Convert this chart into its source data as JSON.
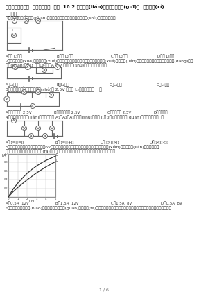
{
  "title": "人教版九年級物理  第十六章電壓  電阻  16.2 串、并聯(lián)電路中電壓的規(guī)律  課后練習(xí)",
  "section1": "一、選擇題",
  "q1": "1．如圖所示，閉合開關(guān)后，只有一盞燈光，用電流表的示數(shù)相同，則可能是",
  "q1_options": [
    "A．燈 L₁斷路",
    "B．燈 L₂斷路",
    "C．燈 L₂斷路",
    "D．燈 L₃斷路"
  ],
  "q2_line1": "2．我們做電學(xué)實驗時同學(xué)全都在本模擬電路的圖，如下圖是一位同學(xué)研究串聯(lián)電路電流、電壓各點的電路圖，當(dāng)閉合",
  "q2_line2": "開關(guān)時，L₁ 亮、L₂不亮，A 和 V 均有示數(shù)，故障的原因可能是",
  "q2_options": [
    "A．L₁斷路",
    "B．L₂斷路",
    "C．L₁燒掉",
    "D．L₂燒掉"
  ],
  "q3": "3．如圖所示，若電壓表的示數(shù)為 2.5V 時，燈 L₂兩端的電壓（    ）",
  "q3_options": [
    "A．有可能大于 2.5V",
    "B．有可能小于 2.5V",
    "C．一定等于 2.5V",
    "D．無法判斷"
  ],
  "q4": "4．如圖所示，并聯(lián)組合中電流表 A₁、A₂、A₃的示數(shù)分別是 I₁、I₂、I₃，則下列關(guān)系式正確的是（  ）",
  "q4_options": [
    "A．I₁=I₂=I₃",
    "B．I₁=I₂+I₃",
    "C．I₃>I₂>I₁",
    "D．I₁<I₂<I₃"
  ],
  "q5_line1": "5．已知甲、乙兩燈的額定電壓均為6V，如圖是甲、乙兩燈電流隨兩端電壓變化的曲線，現(xiàn)將兩燈串聯(lián)后接在某一電",
  "q5_line2": "路兩端，恰使其中一個燈泡正常發(fā)光，若保證電路安全，則電路的工作電壓即電路最大電壓為",
  "q5_options": [
    "A．0.5A  12V",
    "B．1.5A  12V",
    "C．1.5A  8V",
    "D．0.5A  8V"
  ],
  "q6": "6．如圖所示，兩盞標(biāo)稱的電燈在閉合開關(guān)后都能發(fā)光，過了一會兒，兩盞電燈都熄滅了而且不亮了，且電壓表和電流表",
  "page": "1 / 6",
  "bg_color": "#ffffff"
}
